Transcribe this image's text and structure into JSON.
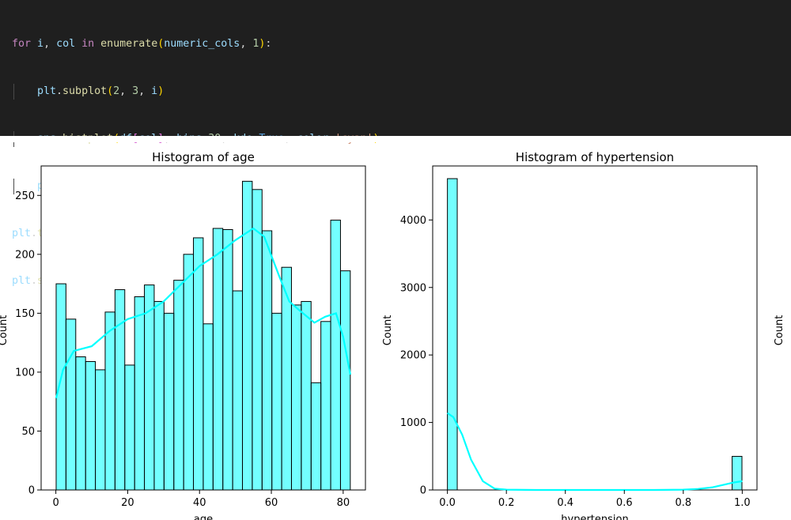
{
  "code": {
    "lines": [
      "for i, col in enumerate(numeric_cols, 1):",
      "plt.subplot(2, 3, i)",
      "sns.histplot(df[col], bins=30, kde=True, color='cyan')",
      "plt.title(f'Histogram of {col}')",
      "plt.tight_layout()",
      "plt.show()"
    ]
  },
  "colors": {
    "bar": "#00ffff",
    "kde": "#00ffff",
    "edge": "#000000",
    "editor_bg": "#1f1f1f"
  },
  "chart_data": [
    {
      "type": "bar",
      "title": "Histogram of age",
      "xlabel": "age",
      "ylabel": "Count",
      "xlim": [
        -4.1,
        86.2
      ],
      "ylim": [
        0,
        275
      ],
      "xticks": [
        0,
        20,
        40,
        60,
        80
      ],
      "yticks": [
        0,
        50,
        100,
        150,
        200,
        250
      ],
      "bins": {
        "start": 0.08,
        "width": 2.73,
        "counts": [
          175,
          145,
          113,
          109,
          102,
          151,
          170,
          106,
          164,
          174,
          160,
          150,
          178,
          200,
          214,
          141,
          222,
          221,
          169,
          262,
          255,
          220,
          150,
          189,
          157,
          160,
          91,
          143,
          229,
          186
        ]
      },
      "kde": {
        "x": [
          0.08,
          2,
          5,
          10,
          15,
          20,
          25,
          30,
          35,
          40,
          45,
          50,
          55,
          58,
          62,
          65,
          68,
          72,
          75,
          78,
          80,
          82
        ],
        "y": [
          78,
          102,
          118,
          122,
          135,
          145,
          150,
          160,
          175,
          190,
          200,
          212,
          222,
          215,
          183,
          160,
          152,
          142,
          147,
          150,
          130,
          98
        ]
      }
    },
    {
      "type": "bar",
      "title": "Histogram of hypertension",
      "xlabel": "hypertension",
      "ylabel": "Count",
      "xlim": [
        -0.05,
        1.05
      ],
      "ylim": [
        0,
        4800
      ],
      "xticks": [
        0.0,
        0.2,
        0.4,
        0.6,
        0.8,
        1.0
      ],
      "yticks": [
        0,
        1000,
        2000,
        3000,
        4000
      ],
      "bins": {
        "start": 0,
        "width": 0.0333,
        "counts": [
          4612,
          0,
          0,
          0,
          0,
          0,
          0,
          0,
          0,
          0,
          0,
          0,
          0,
          0,
          0,
          0,
          0,
          0,
          0,
          0,
          0,
          0,
          0,
          0,
          0,
          0,
          0,
          0,
          0,
          498
        ]
      },
      "kde": {
        "x": [
          0,
          0.02,
          0.05,
          0.08,
          0.12,
          0.16,
          0.2,
          0.3,
          0.5,
          0.7,
          0.8,
          0.85,
          0.9,
          0.94,
          0.97,
          1.0
        ],
        "y": [
          1140,
          1080,
          820,
          450,
          130,
          20,
          5,
          0,
          0,
          0,
          5,
          15,
          40,
          80,
          110,
          130
        ]
      }
    }
  ]
}
